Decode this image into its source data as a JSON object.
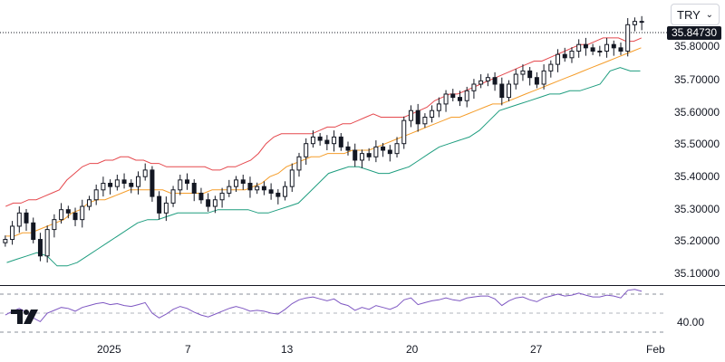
{
  "currency_selector": {
    "value": "TRY"
  },
  "price_axis": {
    "labels": [
      "35.80000",
      "35.70000",
      "35.60000",
      "35.50000",
      "35.40000",
      "35.30000",
      "35.20000",
      "35.10000"
    ]
  },
  "last_price_label": "35.84730",
  "rsi_axis": {
    "label": "40.00"
  },
  "time_axis": {
    "labels": [
      "2025",
      "7",
      "13",
      "20",
      "27",
      "Feb"
    ]
  },
  "colors": {
    "up_candle": "#ffffff",
    "down_candle": "#131722",
    "upper_band": "#e5484d",
    "middle_band": "#f59d2a",
    "lower_band": "#1e9d7f",
    "rsi_line": "#7e57c2"
  },
  "chart_data": {
    "type": "candlestick",
    "ylim": [
      35.06,
      35.86
    ],
    "y_ticks": [
      35.1,
      35.2,
      35.3,
      35.4,
      35.5,
      35.6,
      35.7,
      35.8
    ],
    "x_ticks": [
      "2025",
      "7",
      "13",
      "20",
      "27",
      "Feb"
    ],
    "close": [
      35.19,
      35.23,
      35.27,
      35.24,
      35.19,
      35.14,
      35.22,
      35.25,
      35.28,
      35.27,
      35.25,
      35.29,
      35.31,
      35.34,
      35.36,
      35.35,
      35.37,
      35.36,
      35.35,
      35.38,
      35.4,
      35.32,
      35.27,
      35.3,
      35.34,
      35.37,
      35.36,
      35.33,
      35.31,
      35.29,
      35.31,
      35.33,
      35.35,
      35.37,
      35.36,
      35.34,
      35.35,
      35.34,
      35.33,
      35.32,
      35.35,
      35.4,
      35.44,
      35.48,
      35.5,
      35.49,
      35.48,
      35.5,
      35.47,
      35.46,
      35.43,
      35.45,
      35.44,
      35.47,
      35.46,
      35.45,
      35.48,
      35.55,
      35.58,
      35.54,
      35.56,
      35.58,
      35.6,
      35.63,
      35.62,
      35.61,
      35.64,
      35.66,
      35.67,
      35.68,
      35.66,
      35.62,
      35.66,
      35.69,
      35.7,
      35.68,
      35.66,
      35.7,
      35.72,
      35.75,
      35.74,
      35.76,
      35.78,
      35.77,
      35.76,
      35.76,
      35.78,
      35.77,
      35.76,
      35.84,
      35.85,
      35.8473
    ],
    "upper_band": [
      35.29,
      35.3,
      35.3,
      35.31,
      35.31,
      35.32,
      35.33,
      35.34,
      35.37,
      35.39,
      35.41,
      35.42,
      35.42,
      35.43,
      35.43,
      35.44,
      35.44,
      35.43,
      35.43,
      35.42,
      35.42,
      35.41,
      35.41,
      35.41,
      35.41,
      35.41,
      35.41,
      35.4,
      35.4,
      35.41,
      35.41,
      35.42,
      35.43,
      35.45,
      35.48,
      35.5,
      35.51,
      35.51,
      35.51,
      35.51,
      35.51,
      35.52,
      35.53,
      35.53,
      35.54,
      35.54,
      35.55,
      35.56,
      35.57,
      35.56,
      35.56,
      35.56,
      35.56,
      35.57,
      35.58,
      35.59,
      35.61,
      35.62,
      35.63,
      35.63,
      35.64,
      35.65,
      35.66,
      35.67,
      35.68,
      35.69,
      35.7,
      35.71,
      35.72,
      35.73,
      35.73,
      35.74,
      35.75,
      35.76,
      35.77,
      35.78,
      35.78,
      35.79,
      35.8,
      35.8,
      35.8,
      35.79,
      35.79,
      35.8
    ],
    "middle_band": [
      35.2,
      35.2,
      35.21,
      35.21,
      35.22,
      35.23,
      35.24,
      35.25,
      35.27,
      35.28,
      35.3,
      35.31,
      35.31,
      35.32,
      35.33,
      35.34,
      35.34,
      35.34,
      35.34,
      35.34,
      35.33,
      35.33,
      35.33,
      35.33,
      35.33,
      35.34,
      35.34,
      35.34,
      35.34,
      35.34,
      35.35,
      35.36,
      35.38,
      35.39,
      35.41,
      35.42,
      35.43,
      35.44,
      35.44,
      35.45,
      35.45,
      35.45,
      35.46,
      35.46,
      35.46,
      35.47,
      35.48,
      35.49,
      35.5,
      35.51,
      35.52,
      35.53,
      35.54,
      35.55,
      35.56,
      35.56,
      35.57,
      35.58,
      35.59,
      35.6,
      35.6,
      35.61,
      35.62,
      35.63,
      35.64,
      35.65,
      35.66,
      35.67,
      35.68,
      35.69,
      35.7,
      35.71,
      35.72,
      35.73,
      35.74,
      35.75,
      35.76,
      35.77
    ],
    "lower_band": [
      35.12,
      35.13,
      35.14,
      35.15,
      35.14,
      35.11,
      35.11,
      35.12,
      35.14,
      35.16,
      35.18,
      35.2,
      35.22,
      35.24,
      35.25,
      35.25,
      35.26,
      35.27,
      35.27,
      35.27,
      35.27,
      35.28,
      35.28,
      35.28,
      35.28,
      35.27,
      35.27,
      35.28,
      35.29,
      35.3,
      35.33,
      35.36,
      35.39,
      35.4,
      35.41,
      35.41,
      35.4,
      35.39,
      35.39,
      35.4,
      35.41,
      35.43,
      35.45,
      35.47,
      35.48,
      35.49,
      35.5,
      35.52,
      35.55,
      35.58,
      35.59,
      35.6,
      35.61,
      35.62,
      35.63,
      35.63,
      35.64,
      35.64,
      35.65,
      35.66,
      35.7,
      35.71,
      35.7,
      35.7
    ],
    "rsi": [
      48,
      52,
      55,
      51,
      45,
      41,
      50,
      53,
      56,
      55,
      52,
      56,
      58,
      60,
      61,
      59,
      60,
      58,
      57,
      59,
      61,
      50,
      45,
      49,
      54,
      57,
      55,
      51,
      48,
      46,
      49,
      52,
      55,
      57,
      55,
      52,
      53,
      52,
      50,
      49,
      54,
      60,
      64,
      66,
      67,
      65,
      63,
      65,
      60,
      58,
      53,
      56,
      54,
      58,
      56,
      54,
      57,
      64,
      66,
      59,
      61,
      63,
      64,
      66,
      64,
      63,
      66,
      67,
      68,
      68,
      65,
      58,
      63,
      66,
      67,
      64,
      62,
      66,
      68,
      70,
      68,
      69,
      71,
      69,
      67,
      67,
      69,
      68,
      66,
      74,
      75,
      73
    ],
    "rsi_ticks": [
      40
    ]
  }
}
